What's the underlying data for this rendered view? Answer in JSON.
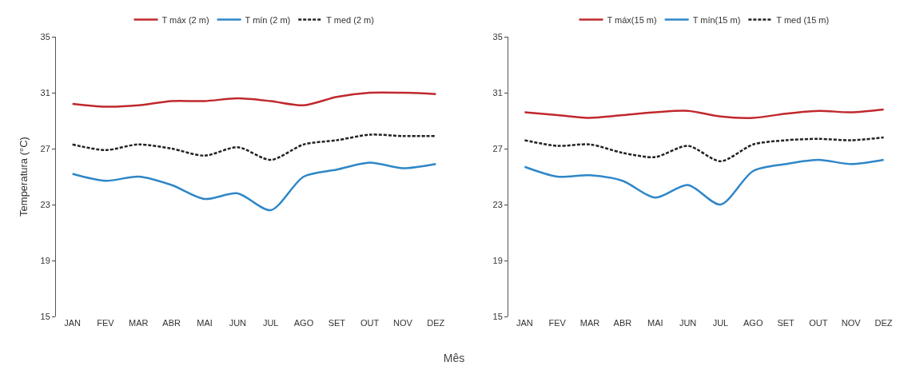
{
  "chart_data": [
    {
      "type": "line",
      "ylabel": "Temperatura (°C)",
      "xlabel": "Mês",
      "categories": [
        "JAN",
        "FEV",
        "MAR",
        "ABR",
        "MAI",
        "JUN",
        "JUL",
        "AGO",
        "SET",
        "OUT",
        "NOV",
        "DEZ"
      ],
      "series": [
        {
          "name": "T máx (2 m)",
          "color": "#c0282d",
          "values": [
            30.2,
            30.0,
            30.1,
            30.4,
            30.4,
            30.6,
            30.4,
            30.1,
            30.7,
            31.0,
            31.0,
            30.9
          ]
        },
        {
          "name": "T mín (2 m)",
          "color": "#2e86c8",
          "values": [
            25.2,
            24.7,
            25.0,
            24.4,
            23.4,
            23.8,
            22.6,
            25.0,
            25.5,
            26.0,
            25.6,
            25.9
          ]
        },
        {
          "name": "T med (2 m)",
          "color": "#222222",
          "line_style": "dashed",
          "values": [
            27.3,
            26.9,
            27.3,
            27.0,
            26.5,
            27.1,
            26.2,
            27.3,
            27.6,
            28.0,
            27.9,
            27.9
          ]
        }
      ],
      "ylim": [
        15,
        35
      ],
      "yticks": [
        15,
        19,
        23,
        27,
        31,
        35
      ],
      "grid": false,
      "legend": "top",
      "marker": "none"
    },
    {
      "type": "line",
      "categories": [
        "JAN",
        "FEV",
        "MAR",
        "ABR",
        "MAI",
        "JUN",
        "JUL",
        "AGO",
        "SET",
        "OUT",
        "NOV",
        "DEZ"
      ],
      "series": [
        {
          "name": "T máx(15 m)",
          "color": "#c0282d",
          "values": [
            29.6,
            29.4,
            29.2,
            29.4,
            29.6,
            29.7,
            29.3,
            29.2,
            29.5,
            29.7,
            29.6,
            29.8
          ]
        },
        {
          "name": "T mín(15 m)",
          "color": "#2e86c8",
          "values": [
            25.7,
            25.0,
            25.1,
            24.7,
            23.5,
            24.4,
            23.0,
            25.4,
            25.9,
            26.2,
            25.9,
            26.2
          ]
        },
        {
          "name": "T med (15 m)",
          "color": "#222222",
          "line_style": "dashed",
          "values": [
            27.6,
            27.2,
            27.3,
            26.7,
            26.4,
            27.2,
            26.1,
            27.3,
            27.6,
            27.7,
            27.6,
            27.8
          ]
        }
      ],
      "ylim": [
        15,
        35
      ],
      "yticks": [
        15,
        19,
        23,
        27,
        31,
        35
      ],
      "grid": false,
      "legend": "top",
      "marker": "none"
    }
  ]
}
